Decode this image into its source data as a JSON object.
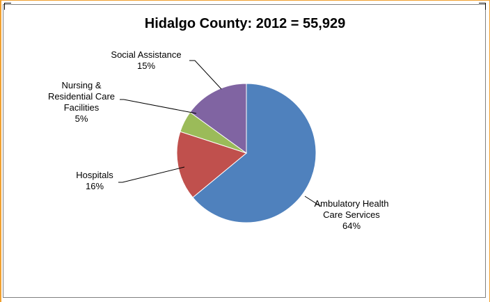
{
  "chart_data": {
    "type": "pie",
    "title": "Hidalgo County: 2012 = 55,929",
    "slices": [
      {
        "label_lines": [
          "Ambulatory Health",
          "Care Services"
        ],
        "pct_label": "64%",
        "value": 64,
        "color": "#4f81bd"
      },
      {
        "label_lines": [
          "Hospitals"
        ],
        "pct_label": "16%",
        "value": 16,
        "color": "#c0504d"
      },
      {
        "label_lines": [
          "Nursing &",
          "Residential Care",
          "Facilities"
        ],
        "pct_label": "5%",
        "value": 5,
        "color": "#9bbb59"
      },
      {
        "label_lines": [
          "Social Assistance"
        ],
        "pct_label": "15%",
        "value": 15,
        "color": "#8064a2"
      }
    ]
  }
}
